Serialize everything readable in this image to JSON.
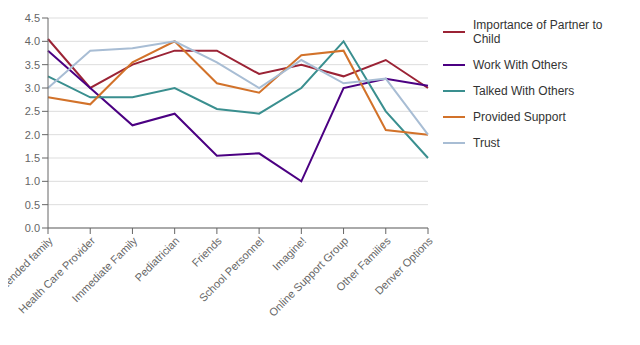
{
  "chart_data": {
    "type": "line",
    "categories": [
      "Extended family",
      "Health Care Provider",
      "Immediate Family",
      "Pediatrician",
      "Friends",
      "School Personnel",
      "Imagine!",
      "Online Support Group",
      "Other Families",
      "Denver Options"
    ],
    "series": [
      {
        "name": "Importance of Partner to\nChild",
        "color": "#9B2335",
        "values": [
          4.05,
          3.0,
          3.5,
          3.8,
          3.8,
          3.3,
          3.5,
          3.25,
          3.6,
          3.0
        ]
      },
      {
        "name": "Work With Others",
        "color": "#4B0082",
        "values": [
          3.8,
          3.0,
          2.2,
          2.45,
          1.55,
          1.6,
          1.0,
          3.0,
          3.2,
          3.05
        ]
      },
      {
        "name": "Talked With Others",
        "color": "#3A8F8F",
        "values": [
          3.25,
          2.8,
          2.8,
          3.0,
          2.55,
          2.45,
          3.0,
          4.0,
          2.5,
          1.5
        ]
      },
      {
        "name": "Provided Support",
        "color": "#D2722A",
        "values": [
          2.8,
          2.65,
          3.55,
          4.0,
          3.1,
          2.9,
          3.7,
          3.8,
          2.1,
          2.0
        ]
      },
      {
        "name": "Trust",
        "color": "#A8BDD4",
        "values": [
          3.0,
          3.8,
          3.85,
          4.0,
          3.55,
          3.0,
          3.6,
          3.1,
          3.2,
          2.0
        ]
      }
    ],
    "ylim": [
      0.0,
      4.5
    ],
    "yticks": [
      {
        "value": 0,
        "label": "0.0"
      },
      0.5,
      {
        "value": 1,
        "label": "1.0"
      },
      1.5,
      {
        "value": 2,
        "label": "2.0"
      },
      2.5,
      {
        "value": 3,
        "label": "3.0"
      },
      3.5,
      {
        "value": 4,
        "label": "4.0"
      },
      4.5
    ],
    "grid": true,
    "legend": "right"
  }
}
